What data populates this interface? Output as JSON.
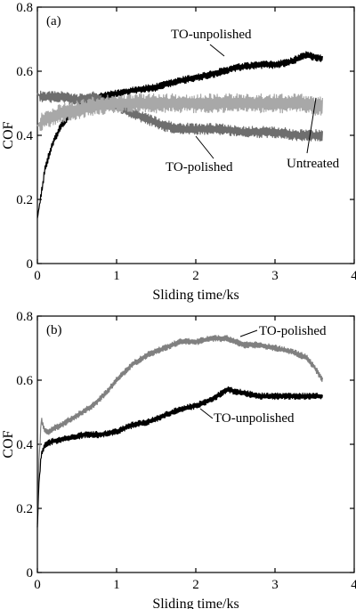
{
  "chart_data": [
    {
      "type": "line",
      "panel_label": "(a)",
      "xlabel": "Sliding time/ks",
      "ylabel": "COF",
      "xlim": [
        0,
        4
      ],
      "ylim": [
        0,
        0.8
      ],
      "x_ticks": [
        "0",
        "1",
        "2",
        "3",
        "4"
      ],
      "y_ticks": [
        "0",
        "0.2",
        "0.4",
        "0.6",
        "0.8"
      ],
      "series": [
        {
          "name": "TO-unpolished",
          "color": "#000000",
          "noise": 0.012,
          "x": [
            0,
            0.05,
            0.1,
            0.2,
            0.3,
            0.4,
            0.6,
            0.8,
            1.0,
            1.2,
            1.5,
            1.8,
            2.0,
            2.2,
            2.5,
            2.8,
            3.0,
            3.2,
            3.4,
            3.6
          ],
          "y": [
            0.14,
            0.22,
            0.3,
            0.38,
            0.43,
            0.46,
            0.5,
            0.52,
            0.53,
            0.54,
            0.55,
            0.57,
            0.58,
            0.59,
            0.61,
            0.62,
            0.62,
            0.63,
            0.65,
            0.64
          ]
        },
        {
          "name": "TO-polished",
          "color": "#6e6e6e",
          "noise": 0.018,
          "x": [
            0,
            0.05,
            0.1,
            0.3,
            0.5,
            0.7,
            0.9,
            1.0,
            1.2,
            1.4,
            1.6,
            1.8,
            2.0,
            2.3,
            2.6,
            3.0,
            3.3,
            3.6
          ],
          "y": [
            0.53,
            0.52,
            0.52,
            0.52,
            0.51,
            0.52,
            0.5,
            0.49,
            0.47,
            0.45,
            0.43,
            0.42,
            0.42,
            0.42,
            0.41,
            0.41,
            0.4,
            0.4
          ]
        },
        {
          "name": "Untreated",
          "color": "#a8a8a8",
          "noise": 0.03,
          "x": [
            0,
            0.05,
            0.1,
            0.2,
            0.3,
            0.5,
            0.7,
            1.0,
            1.5,
            2.0,
            2.5,
            3.0,
            3.3,
            3.6
          ],
          "y": [
            0.43,
            0.44,
            0.45,
            0.46,
            0.47,
            0.48,
            0.49,
            0.5,
            0.5,
            0.5,
            0.5,
            0.5,
            0.5,
            0.49
          ]
        }
      ],
      "annotations": [
        {
          "text": "TO-unpolished",
          "series": "TO-unpolished"
        },
        {
          "text": "TO-polished",
          "series": "TO-polished"
        },
        {
          "text": "Untreated",
          "series": "Untreated"
        }
      ]
    },
    {
      "type": "line",
      "panel_label": "(b)",
      "xlabel": "Sliding time/ks",
      "ylabel": "COF",
      "xlim": [
        0,
        4
      ],
      "ylim": [
        0,
        0.8
      ],
      "x_ticks": [
        "0",
        "1",
        "2",
        "3",
        "4"
      ],
      "y_ticks": [
        "0",
        "0.2",
        "0.4",
        "0.6",
        "0.8"
      ],
      "series": [
        {
          "name": "TO-polished",
          "color": "#808080",
          "noise": 0.01,
          "x": [
            0,
            0.02,
            0.05,
            0.08,
            0.1,
            0.15,
            0.2,
            0.3,
            0.5,
            0.7,
            0.9,
            1.0,
            1.2,
            1.4,
            1.6,
            1.8,
            2.0,
            2.2,
            2.4,
            2.6,
            2.8,
            3.0,
            3.2,
            3.4,
            3.5,
            3.6
          ],
          "y": [
            0.15,
            0.35,
            0.48,
            0.45,
            0.44,
            0.44,
            0.45,
            0.46,
            0.49,
            0.52,
            0.57,
            0.6,
            0.65,
            0.68,
            0.7,
            0.72,
            0.72,
            0.73,
            0.73,
            0.71,
            0.71,
            0.7,
            0.69,
            0.67,
            0.64,
            0.6
          ]
        },
        {
          "name": "TO-unpolished",
          "color": "#000000",
          "noise": 0.01,
          "x": [
            0,
            0.02,
            0.05,
            0.08,
            0.1,
            0.2,
            0.4,
            0.6,
            0.8,
            1.0,
            1.2,
            1.4,
            1.6,
            1.8,
            2.0,
            2.2,
            2.4,
            2.6,
            2.8,
            3.0,
            3.2,
            3.4,
            3.6
          ],
          "y": [
            0.14,
            0.28,
            0.37,
            0.39,
            0.4,
            0.41,
            0.42,
            0.43,
            0.43,
            0.44,
            0.46,
            0.47,
            0.49,
            0.51,
            0.52,
            0.54,
            0.57,
            0.56,
            0.55,
            0.55,
            0.55,
            0.55,
            0.55
          ]
        }
      ],
      "annotations": [
        {
          "text": "TO-polished",
          "series": "TO-polished"
        },
        {
          "text": "TO-unpolished",
          "series": "TO-unpolished"
        }
      ]
    }
  ]
}
